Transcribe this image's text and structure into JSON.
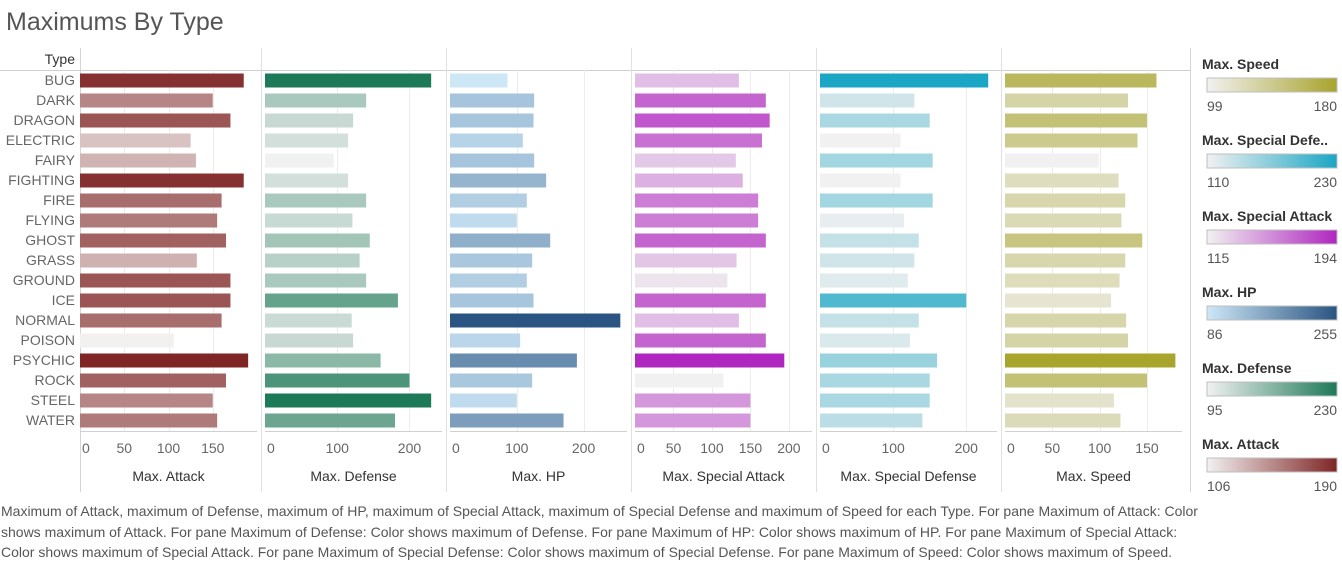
{
  "title": "Maximums By Type",
  "caption": "Maximum of Attack, maximum of Defense, maximum of HP, maximum of Special Attack, maximum of Special Defense and maximum of Speed for each Type.  For pane Maximum of Attack:  Color shows maximum of Attack.  For pane Maximum of Defense:  Color shows maximum of Defense.  For pane Maximum of HP:  Color shows maximum of HP.  For pane Maximum of Special Attack:  Color shows maximum of Special Attack.  For pane Maximum of Special Defense:  Color shows maximum of Special Defense.  For pane Maximum of Speed:  Color shows maximum of Speed.",
  "chart_data": {
    "type": "bar",
    "orientation": "horizontal",
    "row_header": "Type",
    "categories": [
      "BUG",
      "DARK",
      "DRAGON",
      "ELECTRIC",
      "FAIRY",
      "FIGHTING",
      "FIRE",
      "FLYING",
      "GHOST",
      "GRASS",
      "GROUND",
      "ICE",
      "NORMAL",
      "POISON",
      "PSYCHIC",
      "ROCK",
      "STEEL",
      "WATER"
    ],
    "series": [
      {
        "name": "Max. Attack",
        "values": [
          185,
          150,
          170,
          125,
          131,
          185,
          160,
          155,
          165,
          132,
          170,
          170,
          160,
          106,
          190,
          165,
          150,
          155
        ],
        "ticks": [
          0,
          50,
          100,
          150
        ],
        "xlim": [
          0,
          200
        ],
        "color_range": [
          106,
          190
        ],
        "colors": [
          "#f3f0f0",
          "#7f2525"
        ]
      },
      {
        "name": "Max. Defense",
        "values": [
          230,
          140,
          122,
          115,
          95,
          115,
          140,
          121,
          145,
          131,
          140,
          184,
          120,
          122,
          160,
          200,
          230,
          180
        ],
        "ticks": [
          0,
          100,
          200
        ],
        "xlim": [
          0,
          245
        ],
        "color_range": [
          95,
          230
        ],
        "colors": [
          "#f1f1f1",
          "#1d7a58"
        ]
      },
      {
        "name": "Max. HP",
        "values": [
          86,
          126,
          125,
          109,
          126,
          144,
          115,
          100,
          150,
          123,
          115,
          125,
          255,
          105,
          190,
          123,
          100,
          170
        ],
        "ticks": [
          0,
          100,
          200
        ],
        "xlim": [
          0,
          265
        ],
        "color_range": [
          86,
          255
        ],
        "colors": [
          "#cde7f7",
          "#2a5481"
        ]
      },
      {
        "name": "Max. Special Attack",
        "values": [
          135,
          170,
          175,
          165,
          131,
          140,
          160,
          160,
          170,
          132,
          120,
          170,
          135,
          170,
          194,
          115,
          150,
          150
        ],
        "ticks": [
          0,
          50,
          100,
          150,
          200
        ],
        "xlim": [
          0,
          230
        ],
        "color_range": [
          115,
          194
        ],
        "colors": [
          "#f1f1f1",
          "#b026c0"
        ]
      },
      {
        "name": "Max. Special Defense",
        "values": [
          230,
          129,
          150,
          110,
          154,
          110,
          154,
          115,
          135,
          129,
          120,
          200,
          135,
          123,
          160,
          150,
          150,
          140
        ],
        "ticks": [
          0,
          100,
          200
        ],
        "xlim": [
          0,
          242
        ],
        "color_range": [
          110,
          230
        ],
        "colors": [
          "#f1f1f1",
          "#1aa6c4"
        ]
      },
      {
        "name": "Max. Speed",
        "values": [
          160,
          130,
          150,
          140,
          99,
          120,
          127,
          123,
          145,
          127,
          121,
          112,
          128,
          130,
          180,
          150,
          115,
          122
        ],
        "ticks": [
          0,
          50,
          100,
          150
        ],
        "xlim": [
          0,
          187
        ],
        "color_range": [
          99,
          180
        ],
        "colors": [
          "#f1f1f1",
          "#a8a42c"
        ]
      }
    ],
    "grid": true,
    "legend_position": "right",
    "legends": [
      {
        "title": "Max. Speed",
        "min": "99",
        "max": "180",
        "series": 5
      },
      {
        "title": "Max. Special Defe..",
        "min": "110",
        "max": "230",
        "series": 4
      },
      {
        "title": "Max. Special Attack",
        "min": "115",
        "max": "194",
        "series": 3
      },
      {
        "title": "Max. HP",
        "min": "86",
        "max": "255",
        "series": 2
      },
      {
        "title": "Max. Defense",
        "min": "95",
        "max": "230",
        "series": 1
      },
      {
        "title": "Max. Attack",
        "min": "106",
        "max": "190",
        "series": 0
      }
    ]
  }
}
